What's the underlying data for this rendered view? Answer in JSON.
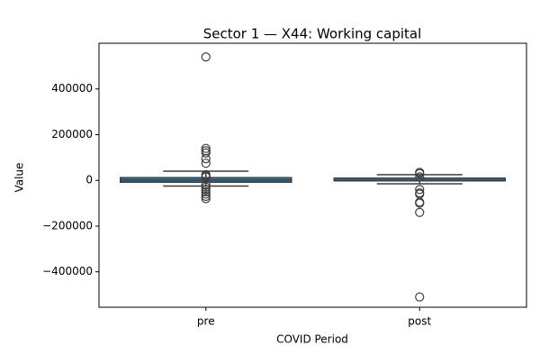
{
  "chart_data": {
    "type": "box",
    "title": "Sector 1 — X44: Working capital",
    "x_label": "COVID Period",
    "y_label": "Value",
    "categories": [
      "pre",
      "post"
    ],
    "color": "#3274a1",
    "boxes": [
      {
        "whislo": -25000,
        "q1": -8000,
        "med": 1000,
        "q3": 12000,
        "whishi": 40000,
        "fliers": [
          540000,
          140000,
          130000,
          120000,
          95000,
          75000,
          25000,
          20000,
          15000,
          -20000,
          -30000,
          -40000,
          -50000,
          -60000,
          -70000,
          -80000
        ]
      },
      {
        "whislo": -15000,
        "q1": -2000,
        "med": 0,
        "q3": 10000,
        "whishi": 25000,
        "fliers": [
          35000,
          30000,
          15000,
          -40000,
          -55000,
          -60000,
          -95000,
          -100000,
          -140000,
          -510000
        ]
      }
    ],
    "ylim": [
      -555000,
      600000
    ],
    "yticks": [
      {
        "value": -400000,
        "label": "−400000"
      },
      {
        "value": -200000,
        "label": "−200000"
      },
      0,
      200000,
      400000
    ]
  }
}
